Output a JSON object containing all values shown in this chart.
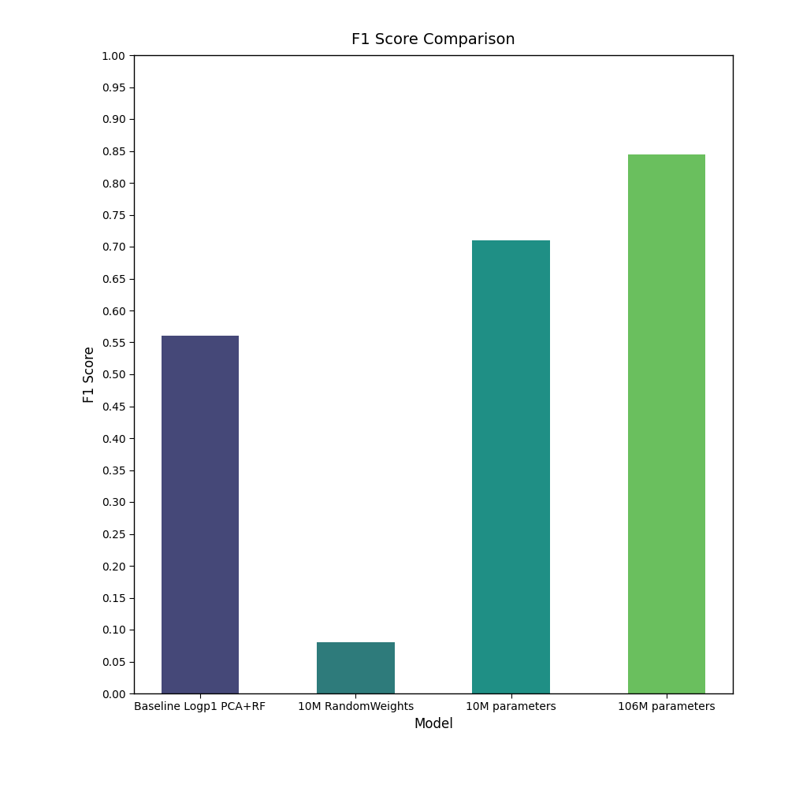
{
  "categories": [
    "Baseline Logp1 PCA+RF",
    "10M RandomWeights",
    "10M parameters",
    "106M parameters"
  ],
  "values": [
    0.56,
    0.08,
    0.71,
    0.845
  ],
  "bar_colors": [
    "#454878",
    "#2e7b7b",
    "#1f8f85",
    "#6abf5e"
  ],
  "title": "F1 Score Comparison",
  "xlabel": "Model",
  "ylabel": "F1 Score",
  "ylim": [
    0.0,
    1.0
  ],
  "yticks": [
    0.0,
    0.05,
    0.1,
    0.15,
    0.2,
    0.25,
    0.3,
    0.35,
    0.4,
    0.45,
    0.5,
    0.55,
    0.6,
    0.65,
    0.7,
    0.75,
    0.8,
    0.85,
    0.9,
    0.95,
    1.0
  ],
  "bar_width": 0.5,
  "figsize": [
    10.0,
    10.0
  ],
  "dpi": 100
}
